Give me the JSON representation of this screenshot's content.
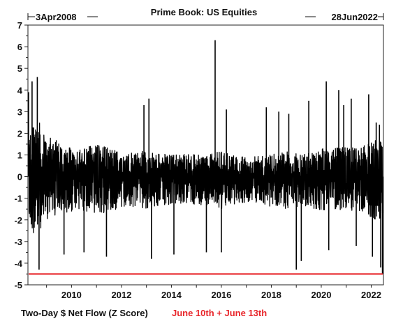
{
  "chart_data": {
    "type": "line",
    "title": "Prime Book: US Equities",
    "start_label": "3Apr2008",
    "end_label": "28Jun2022",
    "ylabel": "Two-Day $ Net Flow (Z Score)",
    "annotation": "June 10th + June 13th",
    "annotation_color": "#e8262b",
    "line_color": "#000000",
    "reference_line": {
      "y": -4.5,
      "color": "#e8262b"
    },
    "xlim": [
      "2008-04-03",
      "2022-06-28"
    ],
    "ylim": [
      -5,
      7
    ],
    "x_ticks": [
      "2010",
      "2012",
      "2014",
      "2016",
      "2018",
      "2020",
      "2022"
    ],
    "y_ticks": [
      "7",
      "6",
      "5",
      "4",
      "3",
      "2",
      "1",
      "0",
      "-1",
      "-2",
      "-3",
      "-4",
      "-5"
    ],
    "envelope": {
      "x": [
        2008.3,
        2008.5,
        2008.7,
        2009.0,
        2009.5,
        2010.0,
        2010.5,
        2011.0,
        2011.5,
        2012.0,
        2012.5,
        2013.0,
        2013.5,
        2014.0,
        2014.5,
        2015.0,
        2015.5,
        2016.0,
        2016.5,
        2017.0,
        2017.5,
        2018.0,
        2018.5,
        2019.0,
        2019.5,
        2020.0,
        2020.5,
        2021.0,
        2021.5,
        2022.0,
        2022.45
      ],
      "upper": [
        2.0,
        2.8,
        2.7,
        2.0,
        1.6,
        1.3,
        1.3,
        1.6,
        1.3,
        1.2,
        1.1,
        1.2,
        1.1,
        1.0,
        1.1,
        1.0,
        1.0,
        1.2,
        1.0,
        0.9,
        1.0,
        1.0,
        1.2,
        1.1,
        1.1,
        1.3,
        1.3,
        1.4,
        1.3,
        1.6,
        1.9
      ],
      "lower": [
        -2.2,
        -2.7,
        -2.5,
        -2.0,
        -1.8,
        -1.6,
        -1.6,
        -1.8,
        -1.6,
        -1.5,
        -1.4,
        -1.5,
        -1.4,
        -1.3,
        -1.3,
        -1.3,
        -1.3,
        -1.5,
        -1.3,
        -1.2,
        -1.2,
        -1.4,
        -1.5,
        -1.4,
        -1.4,
        -1.6,
        -1.5,
        -1.6,
        -1.6,
        -1.9,
        -2.2
      ]
    },
    "spikes": {
      "x": [
        2008.28,
        2008.42,
        2008.63,
        2008.7,
        2009.7,
        2010.5,
        2011.4,
        2012.9,
        2013.1,
        2013.2,
        2014.1,
        2015.4,
        2015.75,
        2016.0,
        2016.2,
        2017.8,
        2018.3,
        2018.7,
        2019.0,
        2019.2,
        2019.5,
        2020.2,
        2020.3,
        2020.7,
        2020.9,
        2021.2,
        2021.4,
        2021.9,
        2022.05,
        2022.2,
        2022.33,
        2022.38,
        2022.45
      ],
      "y": [
        3.9,
        4.4,
        4.6,
        -4.3,
        -3.6,
        -3.5,
        -3.7,
        3.3,
        3.6,
        -3.8,
        -3.6,
        -3.5,
        6.3,
        -3.5,
        3.1,
        3.2,
        3.0,
        2.9,
        -4.3,
        -3.9,
        3.5,
        4.4,
        -3.4,
        4.0,
        3.3,
        3.6,
        -3.2,
        3.8,
        -3.7,
        2.5,
        2.4,
        -4.2,
        -4.5
      ]
    }
  }
}
